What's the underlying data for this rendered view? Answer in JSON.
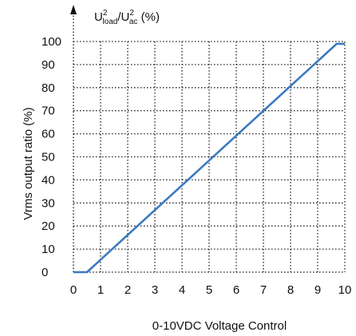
{
  "chart_data": {
    "type": "line",
    "top_label": {
      "base1": "U",
      "sup1": "2",
      "sub1": "load",
      "slash": "/U",
      "sup2": "2",
      "sub2": "ac",
      "suffix": " (%)"
    },
    "xlabel": "0-10VDC   Voltage Control",
    "ylabel": "Vrms  output  ratio  (%)",
    "x_ticks": [
      0,
      1,
      2,
      3,
      4,
      5,
      6,
      7,
      8,
      9,
      10
    ],
    "y_ticks": [
      0,
      10,
      20,
      30,
      40,
      50,
      60,
      70,
      80,
      90,
      100
    ],
    "xlim": [
      0,
      10
    ],
    "ylim": [
      0,
      100
    ],
    "grid": true,
    "series": [
      {
        "x": [
          0,
          0.5,
          9.7,
          10
        ],
        "y": [
          0,
          0,
          99,
          99
        ]
      }
    ],
    "colors": {
      "line": "#3a7abf",
      "grid": "#222222",
      "axis": "#111111"
    }
  }
}
